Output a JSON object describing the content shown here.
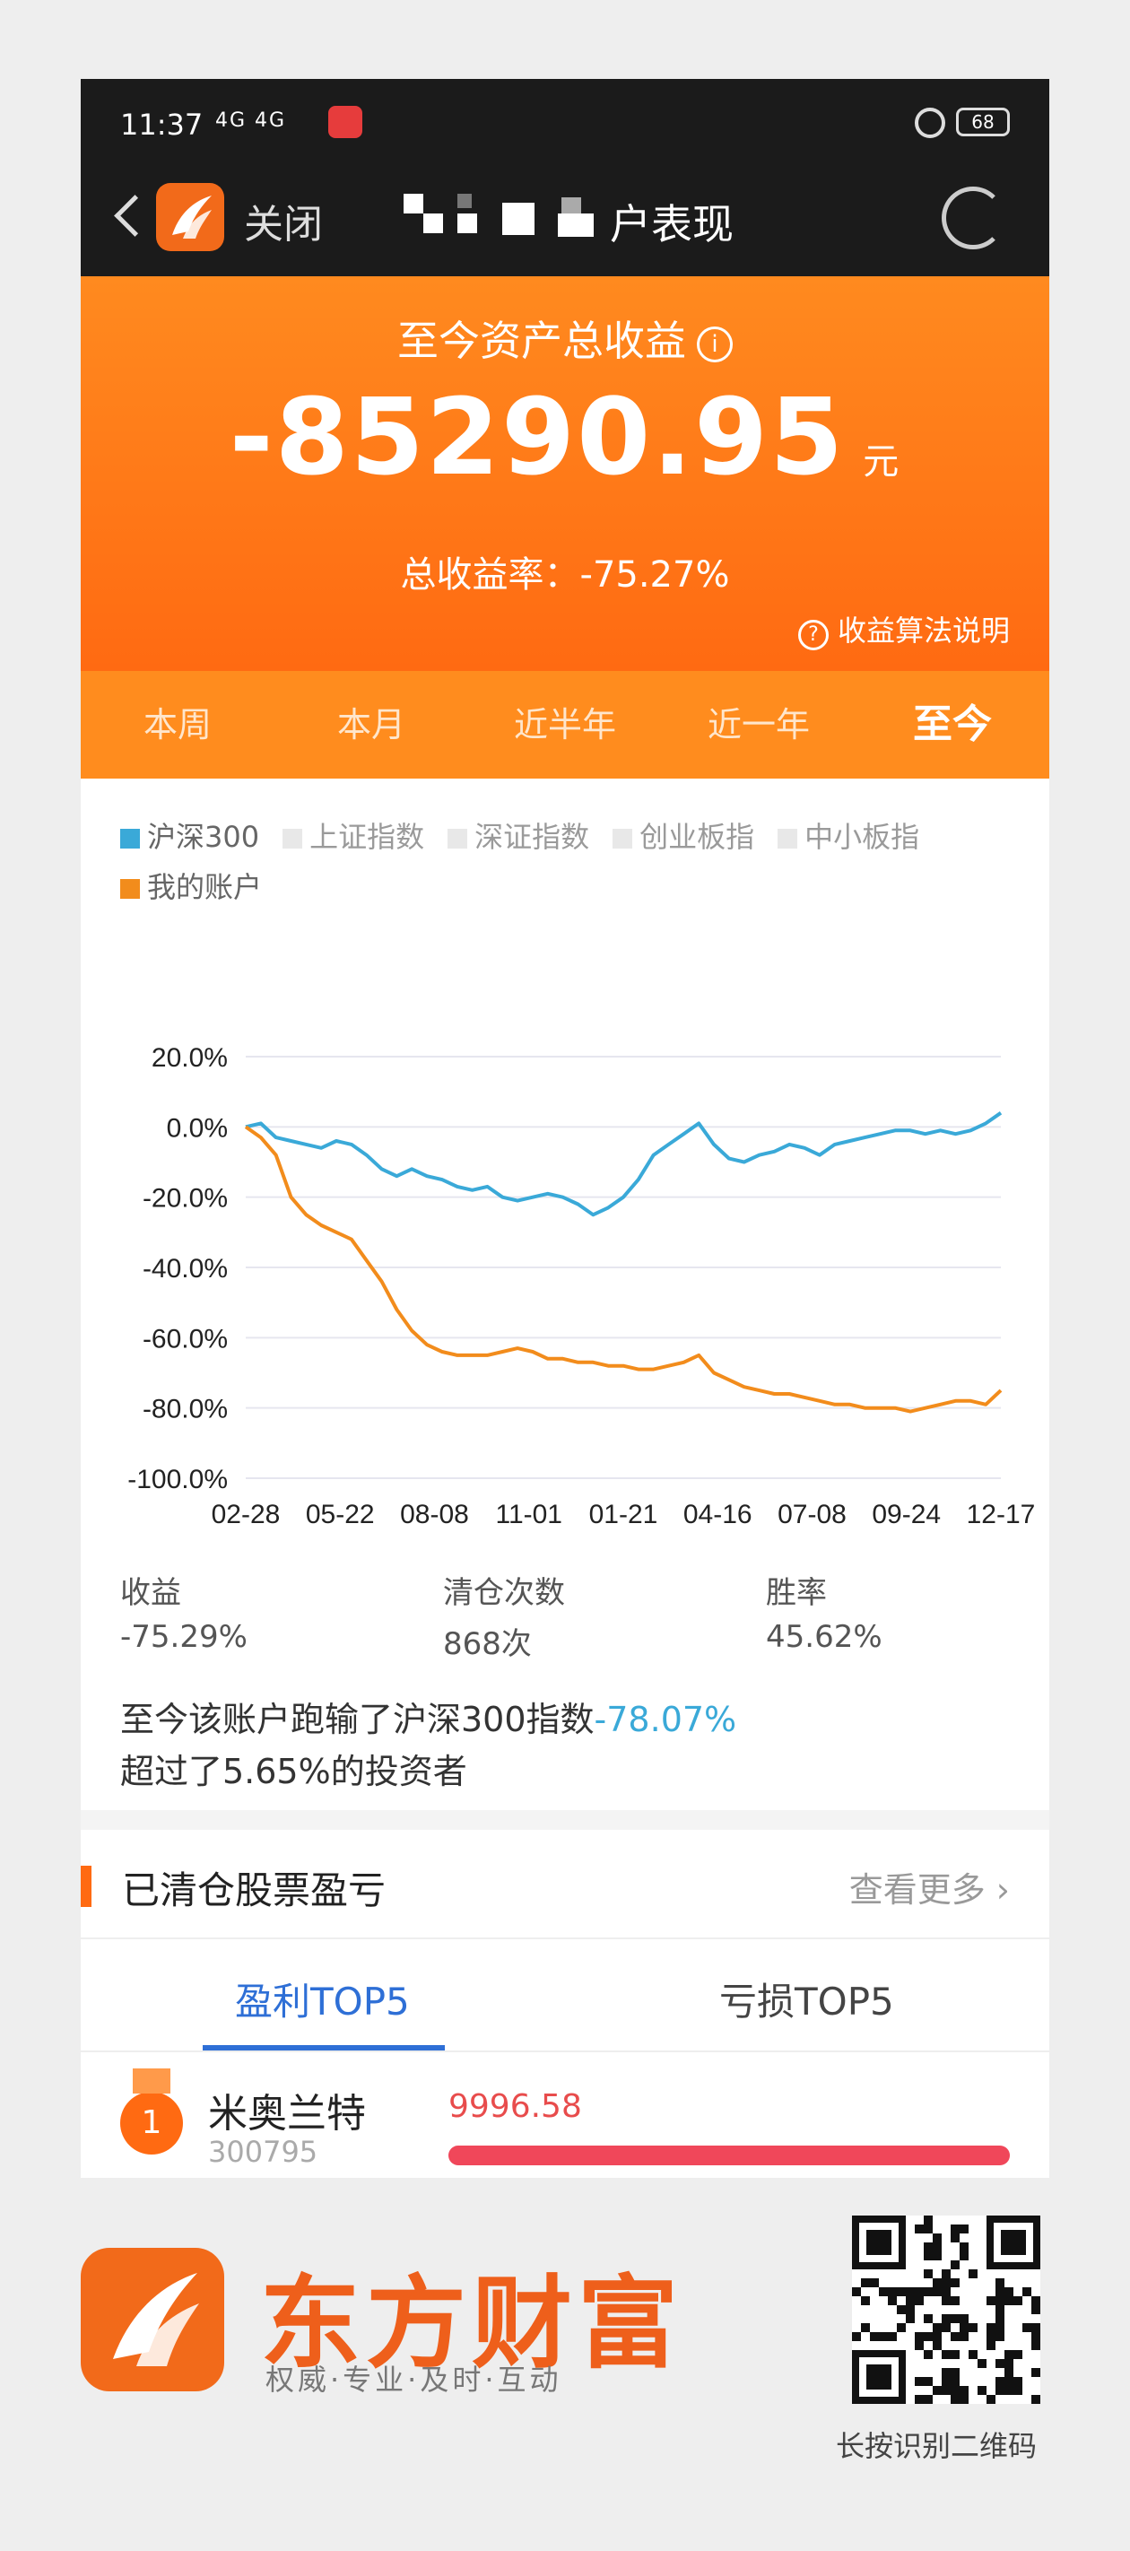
{
  "status_bar": {
    "time": "11:37",
    "signal": "4G 4G",
    "battery": "68"
  },
  "title_bar": {
    "close_label": "关闭",
    "title": "户表现"
  },
  "hero": {
    "label": "至今资产总收益",
    "info_glyph": "i",
    "amount": "-85290.95",
    "unit": "元",
    "rate_text": "总收益率：-75.27%",
    "explain": "收益算法说明",
    "explain_glyph": "?"
  },
  "tabs": [
    {
      "label": "本周"
    },
    {
      "label": "本月"
    },
    {
      "label": "近半年"
    },
    {
      "label": "近一年"
    },
    {
      "label": "至今"
    }
  ],
  "legend": [
    {
      "label": "沪深300",
      "color": "#3aa9d8",
      "on": true
    },
    {
      "label": "上证指数",
      "color": "#e8e8e8",
      "on": false
    },
    {
      "label": "深证指数",
      "color": "#e8e8e8",
      "on": false
    },
    {
      "label": "创业板指",
      "color": "#e8e8e8",
      "on": false
    },
    {
      "label": "中小板指",
      "color": "#e8e8e8",
      "on": false
    },
    {
      "label": "我的账户",
      "color": "#f28c1c",
      "on": true
    }
  ],
  "chart_data": {
    "type": "line",
    "x_ticks": [
      "02-28",
      "05-22",
      "08-08",
      "11-01",
      "01-21",
      "04-16",
      "07-08",
      "09-24",
      "12-17"
    ],
    "y_ticks": [
      "20.0%",
      "0.0%",
      "-20.0%",
      "-40.0%",
      "-60.0%",
      "-80.0%",
      "-100.0%"
    ],
    "ylim": [
      -100,
      20
    ],
    "grid": true,
    "series": [
      {
        "name": "沪深300",
        "color": "#3aa9d8",
        "values": [
          0,
          1,
          -3,
          -4,
          -5,
          -6,
          -4,
          -5,
          -8,
          -12,
          -14,
          -12,
          -14,
          -15,
          -17,
          -18,
          -17,
          -20,
          -21,
          -20,
          -19,
          -20,
          -22,
          -25,
          -23,
          -20,
          -15,
          -8,
          -5,
          -2,
          1,
          -5,
          -9,
          -10,
          -8,
          -7,
          -5,
          -6,
          -8,
          -5,
          -4,
          -3,
          -2,
          -1,
          -1,
          -2,
          -1,
          -2,
          -1,
          1,
          4
        ]
      },
      {
        "name": "我的账户",
        "color": "#f28c1c",
        "values": [
          0,
          -3,
          -8,
          -20,
          -25,
          -28,
          -30,
          -32,
          -38,
          -44,
          -52,
          -58,
          -62,
          -64,
          -65,
          -65,
          -65,
          -64,
          -63,
          -64,
          -66,
          -66,
          -67,
          -67,
          -68,
          -68,
          -69,
          -69,
          -68,
          -67,
          -65,
          -70,
          -72,
          -74,
          -75,
          -76,
          -76,
          -77,
          -78,
          -79,
          -79,
          -80,
          -80,
          -80,
          -81,
          -80,
          -79,
          -78,
          -78,
          -79,
          -75
        ]
      }
    ]
  },
  "stats": [
    {
      "label": "收益",
      "value": "-75.29%"
    },
    {
      "label": "清仓次数",
      "value": "868次"
    },
    {
      "label": "胜率",
      "value": "45.62%"
    }
  ],
  "summary": {
    "line1_prefix": "至今该账户跑输了沪深300指数",
    "line1_value": "-78.07%",
    "line2": "超过了5.65%的投资者"
  },
  "section": {
    "title": "已清仓股票盈亏",
    "more": "查看更多"
  },
  "subtabs": {
    "profit": "盈利TOP5",
    "loss": "亏损TOP5"
  },
  "stock_rows": [
    {
      "rank": "1",
      "name": "米奥兰特",
      "code": "300795",
      "pl": "9996.58",
      "bar_fraction": 1.0
    }
  ],
  "brand": {
    "name": "东方财富",
    "slogan": "权威·专业·及时·互动",
    "qr_caption": "长按识别二维码"
  }
}
